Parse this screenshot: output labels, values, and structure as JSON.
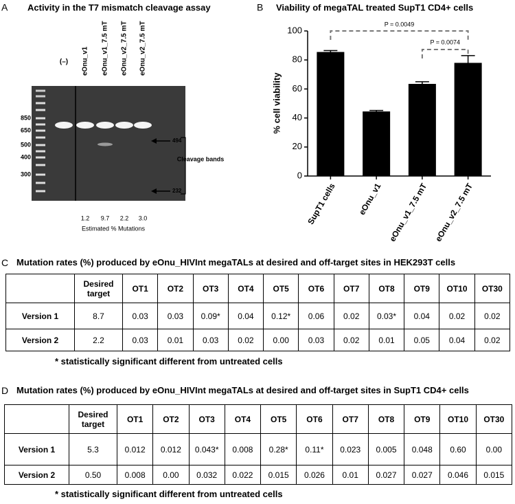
{
  "panel_a": {
    "letter": "A",
    "title": "Activity in the T7 mismatch cleavage assay",
    "lanes": [
      "(–)",
      "eOnu_v1",
      "eOnu_v1_7.5 mT",
      "eOnu_v2_7.5 mT",
      "eOnu_v2_7.5 mT"
    ],
    "ladder": [
      850,
      650,
      500,
      400,
      300
    ],
    "band_labels": [
      494,
      232
    ],
    "bracket_label": "Cleavage bands",
    "mutations": [
      "1.2",
      "9.7",
      "2.2",
      "3.0"
    ],
    "mutations_label": "Estimated % Mutations"
  },
  "chart_data": {
    "type": "bar",
    "letter": "B",
    "title": "Viability of megaTAL treated SupT1 CD4+ cells",
    "ylabel": "% cell viability",
    "categories": [
      "SupT1 cells",
      "eOnu_v1",
      "eOnu_v1_7.5 mT",
      "eOnu_v2_7.5 mT"
    ],
    "values": [
      85.5,
      44.5,
      63.5,
      78
    ],
    "errors": [
      1,
      0.7,
      1.5,
      5
    ],
    "color": "#000000",
    "ylim": [
      0,
      100
    ],
    "yticks": [
      0,
      20,
      40,
      60,
      80,
      100
    ],
    "annotations": [
      "P = 0.0049",
      "P = 0.0074"
    ]
  },
  "table_c": {
    "letter": "C",
    "title": "Mutation rates (%) produced by eOnu_HIVInt megaTALs at desired and off-target sites in HEK293T cells",
    "header": [
      "Desired target",
      "OT1",
      "OT2",
      "OT3",
      "OT4",
      "OT5",
      "OT6",
      "OT7",
      "OT8",
      "OT9",
      "OT10",
      "OT30"
    ],
    "rows": [
      {
        "label": "Version 1",
        "cells": [
          "8.7",
          "0.03",
          "0.03",
          "0.09*",
          "0.04",
          "0.12*",
          "0.06",
          "0.02",
          "0.03*",
          "0.04",
          "0.02",
          "0.02"
        ]
      },
      {
        "label": "Version 2",
        "cells": [
          "2.2",
          "0.03",
          "0.01",
          "0.03",
          "0.02",
          "0.00",
          "0.03",
          "0.02",
          "0.01",
          "0.05",
          "0.04",
          "0.02"
        ]
      }
    ],
    "footnote": "* statistically significant different from untreated cells"
  },
  "table_d": {
    "letter": "D",
    "title": "Mutation rates (%) produced by eOnu_HIVInt megaTALs at desired and off-target sites in SupT1 CD4+ cells",
    "header": [
      "Desired target",
      "OT1",
      "OT2",
      "OT3",
      "OT4",
      "OT5",
      "OT6",
      "OT7",
      "OT8",
      "OT9",
      "OT10",
      "OT30"
    ],
    "rows": [
      {
        "label": "Version 1",
        "cells": [
          "5.3",
          "0.012",
          "0.012",
          "0.043*",
          "0.008",
          "0.28*",
          "0.11*",
          "0.023",
          "0.005",
          "0.048",
          "0.60",
          "0.00"
        ]
      },
      {
        "label": "Version 2",
        "cells": [
          "0.50",
          "0.008",
          "0.00",
          "0.032",
          "0.022",
          "0.015",
          "0.026",
          "0.01",
          "0.027",
          "0.027",
          "0.046",
          "0.015"
        ]
      }
    ],
    "footnote": "* statistically significant different from untreated cells"
  }
}
